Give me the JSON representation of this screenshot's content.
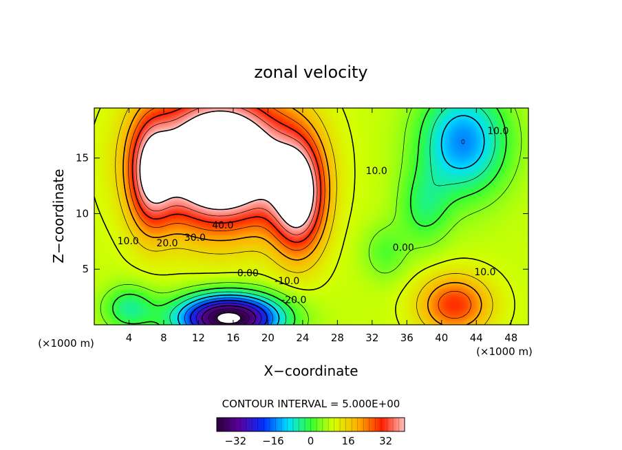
{
  "chart_data": {
    "type": "heatmap",
    "title": "zonal velocity",
    "xlabel": "X−coordinate",
    "ylabel": "Z−coordinate",
    "x_unit": "(×1000 m)",
    "z_unit": "(×1000 m)",
    "xlim": [
      0,
      50
    ],
    "ylim": [
      0,
      19.5
    ],
    "x_ticks": [
      "4",
      "8",
      "12",
      "16",
      "20",
      "24",
      "28",
      "32",
      "36",
      "40",
      "44",
      "48"
    ],
    "y_ticks": [
      "5",
      "10",
      "15"
    ],
    "contour_interval_text": "CONTOUR INTERVAL = 5.000E+00",
    "colorbar": {
      "range": [
        -40,
        40
      ],
      "tick_values": [
        -32,
        -16,
        0,
        16,
        32
      ],
      "tick_labels": [
        "−32",
        "−16",
        "0",
        "16",
        "32"
      ]
    },
    "contour_labels": [
      {
        "text": "40.0",
        "x": 14.8,
        "z": 8.9
      },
      {
        "text": "30.0",
        "x": 11.6,
        "z": 7.8
      },
      {
        "text": "20.0",
        "x": 8.4,
        "z": 7.3
      },
      {
        "text": "10.0",
        "x": 3.9,
        "z": 7.5
      },
      {
        "text": "0.00",
        "x": 17.7,
        "z": 4.6
      },
      {
        "text": "-10.0",
        "x": 22.2,
        "z": 3.9
      },
      {
        "text": "-20.0",
        "x": 23.0,
        "z": 2.2
      },
      {
        "text": "10.0",
        "x": 32.5,
        "z": 13.8
      },
      {
        "text": "0.00",
        "x": 35.6,
        "z": 6.9
      },
      {
        "text": "10.0",
        "x": 45.0,
        "z": 4.7
      },
      {
        "text": "10.0",
        "x": 46.5,
        "z": 17.4
      }
    ],
    "features": [
      {
        "kind": "jet-max",
        "sign": "positive",
        "x": 14.8,
        "z": 14.5,
        "peak": 40,
        "note": "above 40 (white core)"
      },
      {
        "kind": "jet-min",
        "sign": "negative",
        "x": 15.5,
        "z": 0.8,
        "peak": -40,
        "note": "below -40 (white core)"
      },
      {
        "kind": "weak-min",
        "sign": "negative",
        "x": 42.5,
        "z": 16.5,
        "peak": -17
      },
      {
        "kind": "weak-max",
        "sign": "positive",
        "x": 41.5,
        "z": 1.8,
        "peak": 26
      }
    ]
  }
}
